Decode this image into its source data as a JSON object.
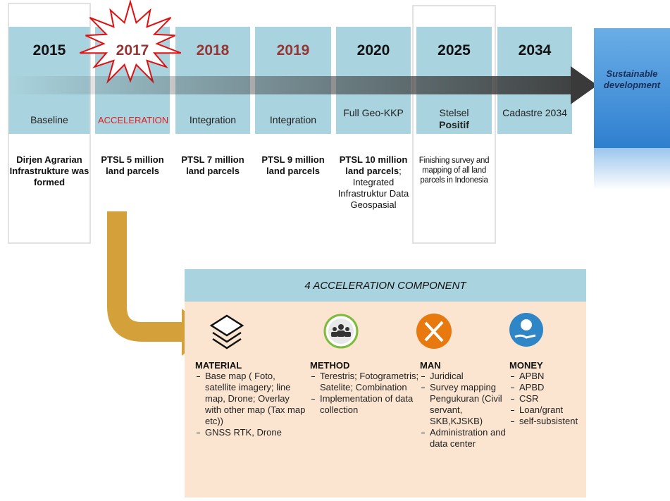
{
  "timeline": [
    {
      "year": "2015",
      "phase": "Baseline",
      "description": "Dirjen Agrarian Infrastrukture was formed"
    },
    {
      "year": "2017",
      "phase": "ACCELERATION",
      "description": "PTSL 5 million land parcels"
    },
    {
      "year": "2018",
      "phase": "Integration",
      "description": "PTSL 7 million land parcels"
    },
    {
      "year": "2019",
      "phase": "Integration",
      "description": "PTSL 9 million land parcels"
    },
    {
      "year": "2020",
      "phase": "Full Geo-KKP",
      "description": "PTSL 10 million land parcels",
      "note": "; Integrated Infrastruktur Data Geospasial"
    },
    {
      "year": "2025",
      "phase": "Stelsel",
      "phase_bold": "Positif",
      "note": "Finishing survey and mapping of all land parcels in Indonesia"
    },
    {
      "year": "2034",
      "phase": "Cadastre 2034"
    }
  ],
  "goal": "Sustainable development",
  "components": {
    "title": "4 ACCELERATION COMPONENT",
    "items": [
      {
        "name": "MATERIAL",
        "points": [
          "Base map ( Foto, satellite imagery; line map, Drone; Overlay with other map (Tax map etc))",
          "GNSS RTK, Drone"
        ]
      },
      {
        "name": "METHOD",
        "points": [
          "Terestris; Fotogrametris; Satelite; Combination",
          "Implementation of data collection"
        ]
      },
      {
        "name": "MAN",
        "points": [
          "Juridical",
          "Survey mapping Pengukuran (Civil servant, SKB,KJSKB)",
          "Administration and data center"
        ]
      },
      {
        "name": "MONEY",
        "points": [
          "APBN",
          "APBD",
          "CSR",
          "Loan/grant",
          "self-subsistent"
        ]
      }
    ]
  }
}
